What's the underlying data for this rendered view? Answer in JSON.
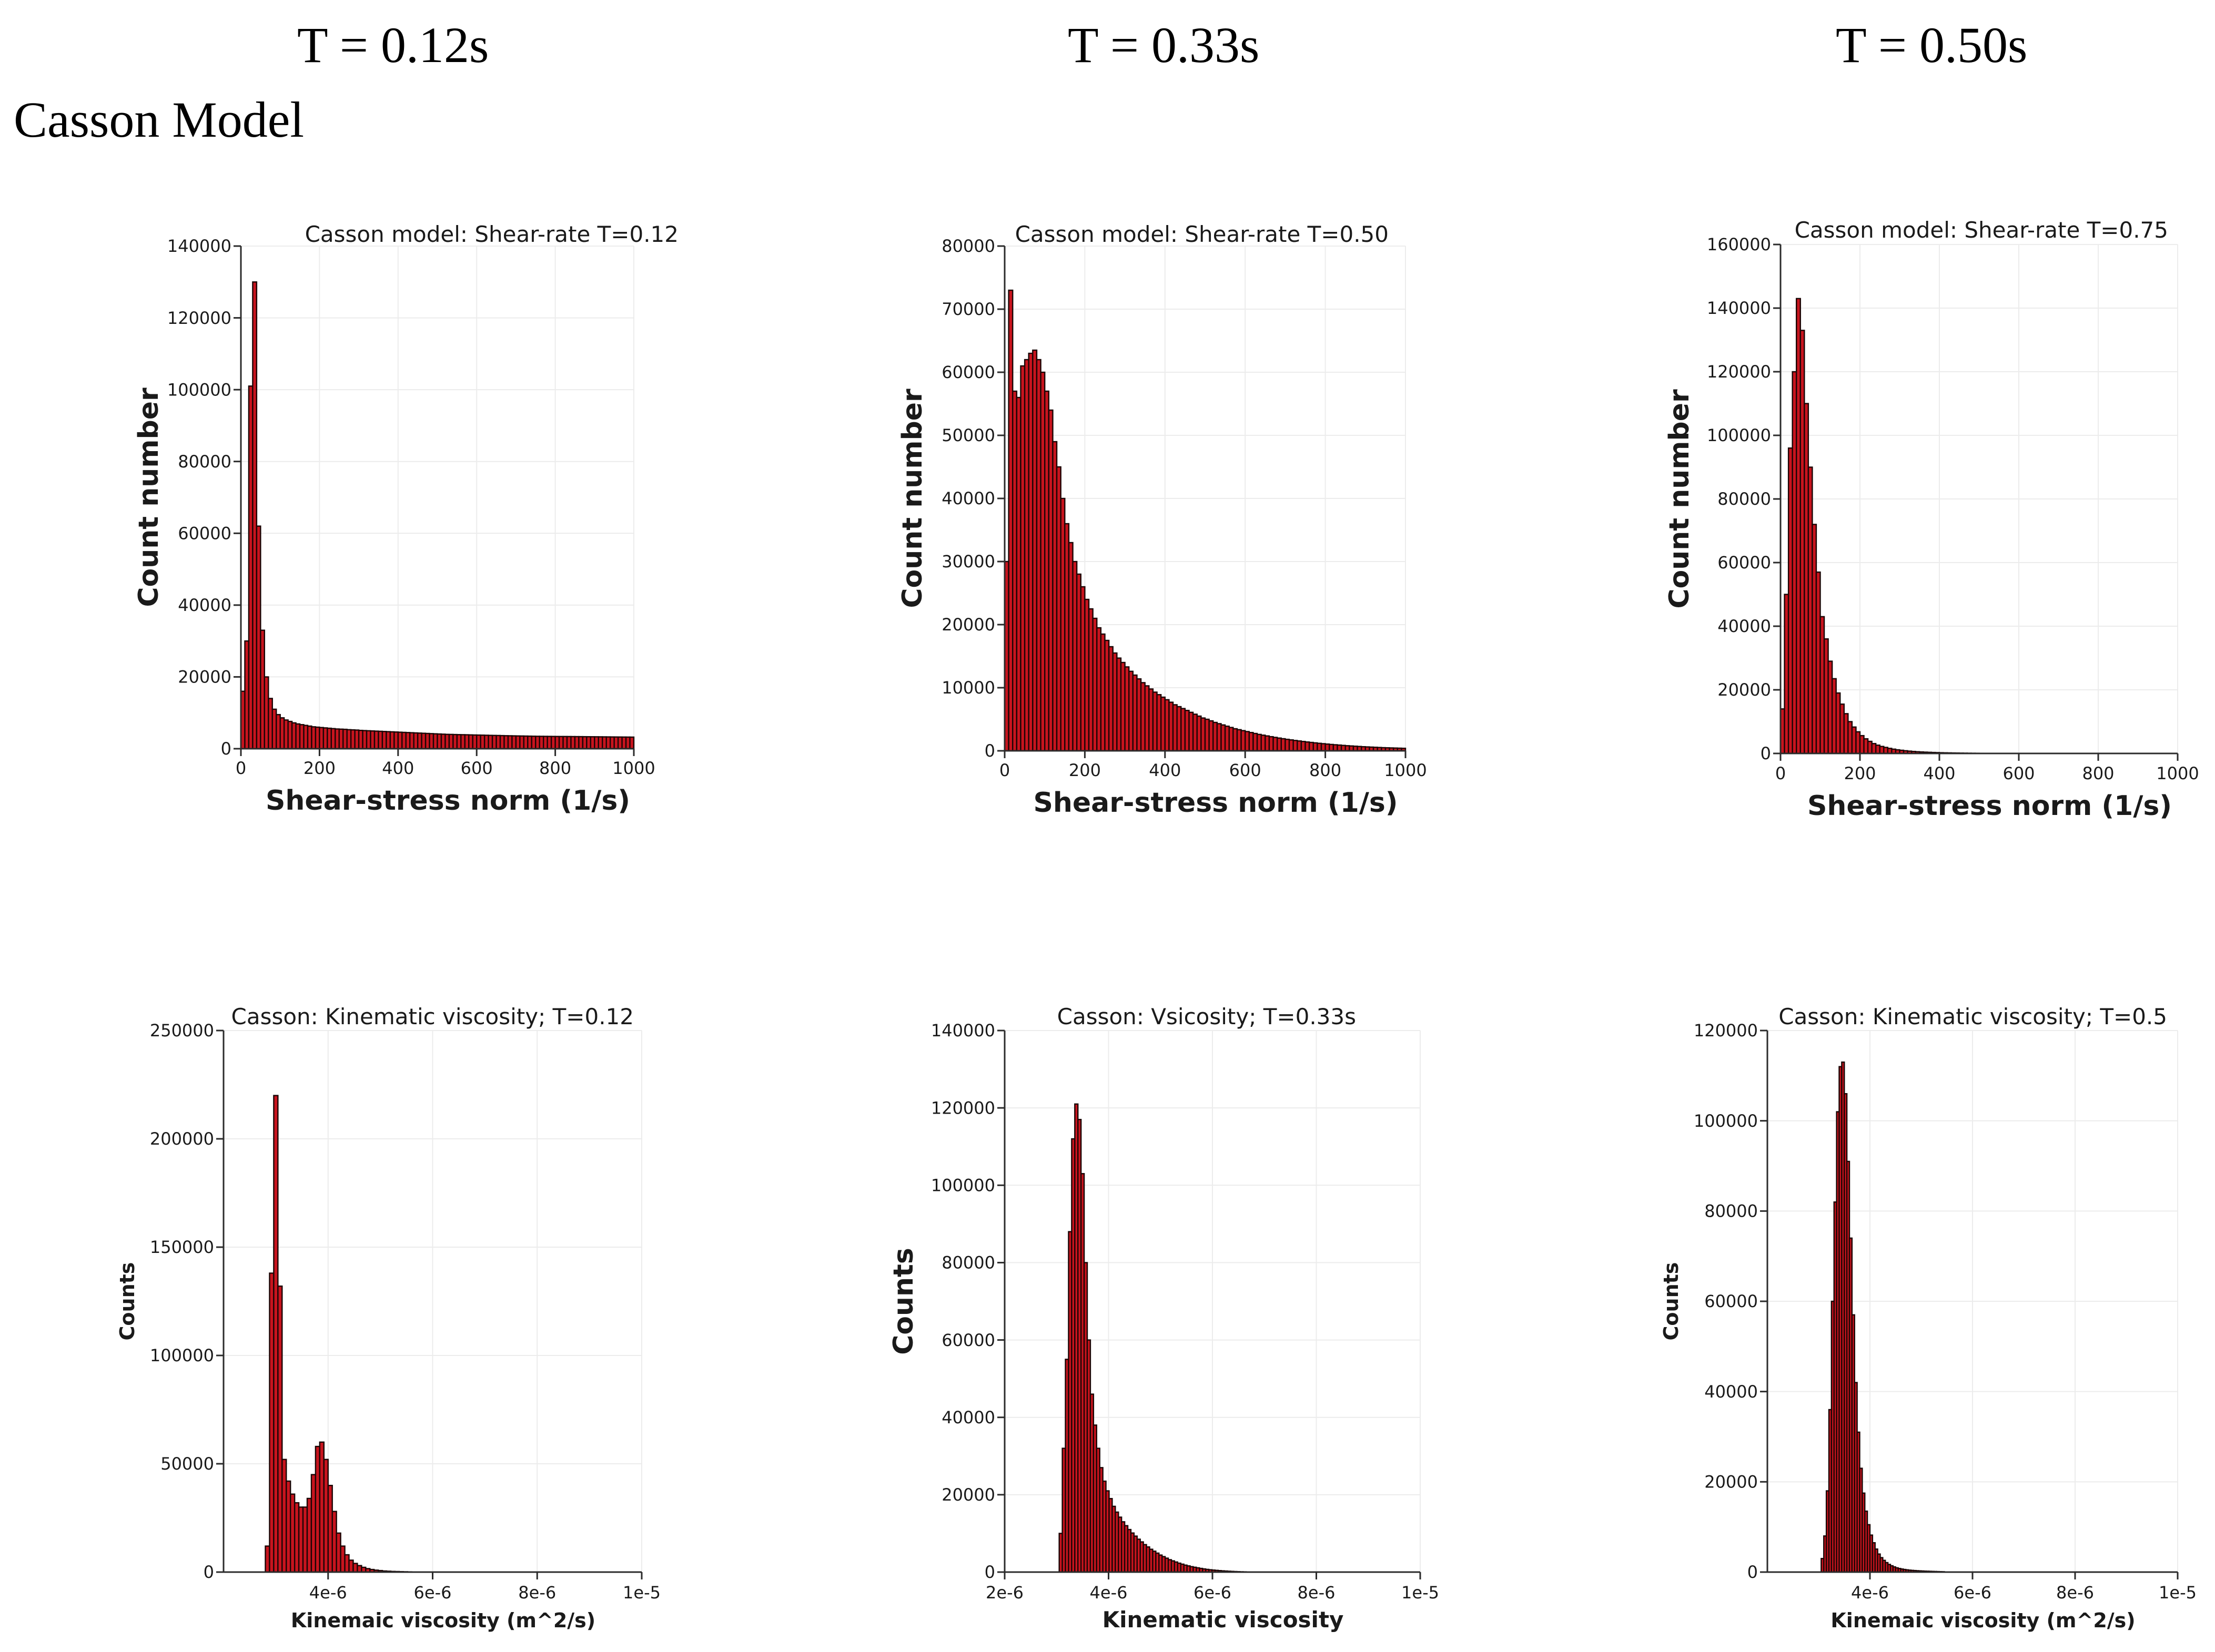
{
  "headers": [
    "T = 0.12s",
    "T = 0.33s",
    "T = 0.50s"
  ],
  "model_label": "Casson Model",
  "colors": {
    "bar_fill": "#c8141e",
    "bar_stroke": "#1a0505",
    "grid": "#ececec",
    "axis": "#2b2b2b"
  },
  "chart_data": [
    {
      "type": "bar",
      "title": "Casson model: Shear-rate T=0.12",
      "xlabel": "Shear-stress norm (1/s)",
      "ylabel": "Count number",
      "xlim": [
        0,
        1000
      ],
      "ylim": [
        0,
        140000
      ],
      "xticks": [
        0,
        200,
        400,
        600,
        800,
        1000
      ],
      "xtick_labels": [
        "0",
        "200",
        "400",
        "600",
        "800",
        "1000"
      ],
      "yticks": [
        0,
        20000,
        40000,
        60000,
        80000,
        100000,
        120000,
        140000
      ],
      "ytick_labels": [
        "0",
        "20000",
        "40000",
        "60000",
        "80000",
        "100000",
        "120000",
        "140000"
      ],
      "bin_start": 0,
      "bin_width": 10,
      "values": [
        16000,
        30000,
        101000,
        130000,
        62000,
        33000,
        20000,
        14000,
        11000,
        9500,
        8600,
        8000,
        7600,
        7200,
        6900,
        6700,
        6500,
        6300,
        6100,
        6000,
        5900,
        5800,
        5700,
        5600,
        5500,
        5450,
        5400,
        5300,
        5250,
        5200,
        5100,
        5050,
        5000,
        4950,
        4900,
        4850,
        4800,
        4750,
        4700,
        4650,
        4600,
        4550,
        4500,
        4450,
        4400,
        4350,
        4300,
        4250,
        4200,
        4150,
        4100,
        4050,
        4000,
        3980,
        3950,
        3920,
        3900,
        3880,
        3850,
        3820,
        3800,
        3780,
        3750,
        3720,
        3700,
        3680,
        3650,
        3620,
        3600,
        3580,
        3560,
        3540,
        3520,
        3500,
        3480,
        3460,
        3450,
        3440,
        3430,
        3420,
        3410,
        3400,
        3400,
        3390,
        3380,
        3370,
        3360,
        3350,
        3340,
        3330,
        3320,
        3310,
        3300,
        3290,
        3280,
        3270,
        3260,
        3250,
        3240,
        3230
      ]
    },
    {
      "type": "bar",
      "title": "Casson model: Shear-rate T=0.50",
      "xlabel": "Shear-stress norm (1/s)",
      "ylabel": "Count number",
      "xlim": [
        0,
        1000
      ],
      "ylim": [
        0,
        80000
      ],
      "xticks": [
        0,
        200,
        400,
        600,
        800,
        1000
      ],
      "xtick_labels": [
        "0",
        "200",
        "400",
        "600",
        "800",
        "1000"
      ],
      "yticks": [
        0,
        10000,
        20000,
        30000,
        40000,
        50000,
        60000,
        70000,
        80000
      ],
      "ytick_labels": [
        "0",
        "10000",
        "20000",
        "30000",
        "40000",
        "50000",
        "60000",
        "70000",
        "80000"
      ],
      "bin_start": 0,
      "bin_width": 10,
      "values": [
        30000,
        73000,
        57000,
        56000,
        61000,
        62000,
        63000,
        63500,
        62000,
        60000,
        57000,
        54000,
        49000,
        45000,
        40000,
        36000,
        33000,
        30000,
        28000,
        26000,
        24000,
        22500,
        21000,
        19500,
        18500,
        17500,
        16500,
        15500,
        14700,
        14000,
        13300,
        12600,
        12000,
        11400,
        10800,
        10300,
        9800,
        9300,
        8900,
        8500,
        8100,
        7700,
        7300,
        7000,
        6700,
        6400,
        6100,
        5800,
        5500,
        5200,
        5000,
        4750,
        4500,
        4300,
        4100,
        3900,
        3700,
        3500,
        3350,
        3200,
        3050,
        2900,
        2750,
        2600,
        2480,
        2360,
        2240,
        2130,
        2020,
        1920,
        1820,
        1730,
        1640,
        1560,
        1480,
        1400,
        1330,
        1260,
        1190,
        1130,
        1070,
        1010,
        960,
        910,
        860,
        810,
        770,
        730,
        690,
        650,
        620,
        590,
        560,
        530,
        500,
        480,
        460,
        440,
        420,
        400
      ]
    },
    {
      "type": "bar",
      "title": "Casson model: Shear-rate T=0.75",
      "xlabel": "Shear-stress norm (1/s)",
      "ylabel": "Count number",
      "xlim": [
        0,
        1000
      ],
      "ylim": [
        0,
        160000
      ],
      "xticks": [
        0,
        200,
        400,
        600,
        800,
        1000
      ],
      "xtick_labels": [
        "0",
        "200",
        "400",
        "600",
        "800",
        "1000"
      ],
      "yticks": [
        0,
        20000,
        40000,
        60000,
        80000,
        100000,
        120000,
        140000,
        160000
      ],
      "ytick_labels": [
        "0",
        "20000",
        "40000",
        "60000",
        "80000",
        "100000",
        "120000",
        "140000",
        "160000"
      ],
      "bin_start": 0,
      "bin_width": 10,
      "values": [
        14000,
        50000,
        96000,
        120000,
        143000,
        133000,
        110000,
        90000,
        72000,
        57000,
        43000,
        36000,
        29000,
        23500,
        19000,
        15500,
        12500,
        10000,
        8300,
        6800,
        5600,
        4600,
        3800,
        3100,
        2600,
        2200,
        1900,
        1600,
        1350,
        1150,
        1000,
        850,
        730,
        630,
        540,
        470,
        410,
        360,
        310,
        270,
        230,
        200,
        175,
        150,
        130,
        110,
        95,
        80,
        70,
        60,
        50,
        40,
        34,
        28,
        24,
        20,
        16,
        13,
        10,
        8
      ]
    },
    {
      "type": "bar",
      "title": "Casson: Kinematic viscosity; T=0.12",
      "xlabel": "Kinemaic viscosity (m^2/s)",
      "ylabel": "Counts",
      "xlim": [
        2e-06,
        1e-05
      ],
      "ylim": [
        0,
        250000
      ],
      "xticks": [
        4e-06,
        6e-06,
        8e-06,
        1e-05
      ],
      "xtick_labels": [
        "4e-6",
        "6e-6",
        "8e-6",
        "1e-5"
      ],
      "yticks": [
        0,
        50000,
        100000,
        150000,
        200000,
        250000
      ],
      "ytick_labels": [
        "0",
        "50000",
        "100000",
        "150000",
        "200000",
        "250000"
      ],
      "bin_start": 2.8e-06,
      "bin_width": 8e-08,
      "values": [
        12000,
        138000,
        220000,
        132000,
        52000,
        42000,
        36000,
        32000,
        30000,
        30000,
        34000,
        45000,
        58000,
        60000,
        52000,
        40000,
        28000,
        18000,
        12000,
        8000,
        5500,
        4000,
        3000,
        2200,
        1600,
        1200,
        900,
        700,
        500,
        400,
        300,
        250,
        200,
        150,
        100
      ]
    },
    {
      "type": "bar",
      "title": "Casson: Vsicosity; T=0.33s",
      "xlabel": "Kinematic viscosity",
      "ylabel": "Counts",
      "xlim": [
        2e-06,
        1e-05
      ],
      "ylim": [
        0,
        140000
      ],
      "xticks": [
        2e-06,
        4e-06,
        6e-06,
        8e-06,
        1e-05
      ],
      "xtick_labels": [
        "2e-6",
        "4e-6",
        "6e-6",
        "8e-6",
        "1e-5"
      ],
      "yticks": [
        0,
        20000,
        40000,
        60000,
        80000,
        100000,
        120000,
        140000
      ],
      "ytick_labels": [
        "0",
        "20000",
        "40000",
        "60000",
        "80000",
        "100000",
        "120000",
        "140000"
      ],
      "bin_start": 3.05e-06,
      "bin_width": 6e-08,
      "values": [
        10000,
        32000,
        55000,
        88000,
        112000,
        121000,
        117000,
        103000,
        80000,
        60000,
        46000,
        38000,
        32000,
        27000,
        23500,
        21000,
        19000,
        17000,
        15500,
        14200,
        13000,
        12000,
        11000,
        10100,
        9300,
        8500,
        7800,
        7100,
        6500,
        5900,
        5400,
        4900,
        4400,
        4000,
        3600,
        3200,
        2900,
        2600,
        2300,
        2050,
        1800,
        1600,
        1400,
        1250,
        1100,
        950,
        820,
        700,
        600,
        520,
        450,
        380,
        320,
        270,
        220,
        180,
        140,
        110,
        80,
        60
      ]
    },
    {
      "type": "bar",
      "title": "Casson: Kinematic viscosity; T=0.5",
      "xlabel": "Kinemaic viscosity (m^2/s)",
      "ylabel": "Counts",
      "xlim": [
        2e-06,
        1e-05
      ],
      "ylim": [
        0,
        120000
      ],
      "xticks": [
        4e-06,
        6e-06,
        8e-06,
        1e-05
      ],
      "xtick_labels": [
        "4e-6",
        "6e-6",
        "8e-6",
        "1e-5"
      ],
      "yticks": [
        0,
        20000,
        40000,
        60000,
        80000,
        100000,
        120000
      ],
      "ytick_labels": [
        "0",
        "20000",
        "40000",
        "60000",
        "80000",
        "100000",
        "120000"
      ],
      "bin_start": 3.05e-06,
      "bin_width": 5e-08,
      "values": [
        3000,
        8000,
        18000,
        36000,
        60000,
        82000,
        102000,
        112000,
        113000,
        106000,
        91000,
        74000,
        57000,
        42000,
        31000,
        23000,
        17500,
        13500,
        10500,
        8200,
        6500,
        5100,
        4000,
        3200,
        2600,
        2100,
        1700,
        1400,
        1150,
        950,
        800,
        680,
        580,
        500,
        430,
        380,
        340,
        300,
        270,
        240,
        210,
        190,
        170,
        150,
        130,
        110,
        95,
        80
      ]
    }
  ]
}
